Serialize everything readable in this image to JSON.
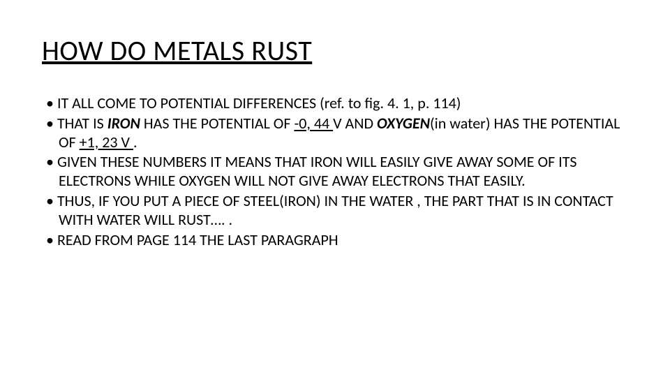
{
  "slide": {
    "title": "HOW DO METALS RUST",
    "title_fontsize": 40,
    "title_underline": true,
    "body_fontsize": 22,
    "text_color": "#000000",
    "background_color": "#ffffff",
    "bullets": [
      {
        "segments": [
          {
            "text": "IT ALL COME TO POTENTIAL DIFFERENCES (ref. to fig. 4. 1, p. 114)"
          }
        ]
      },
      {
        "segments": [
          {
            "text": "THAT IS "
          },
          {
            "text": "IRON",
            "bold": true,
            "italic": true
          },
          {
            "text": " HAS THE POTENTIAL OF "
          },
          {
            "text": "-0, 44 ",
            "underline": true
          },
          {
            "text": "V AND "
          },
          {
            "text": "OXYGEN",
            "bold": true,
            "italic": true
          },
          {
            "text": "(in water) HAS THE POTENTIAL OF "
          },
          {
            "text": "+1, 23 V ",
            "underline": true
          },
          {
            "text": "."
          }
        ]
      },
      {
        "segments": [
          {
            "text": "GIVEN THESE NUMBERS IT MEANS THAT IRON WILL EASILY GIVE AWAY SOME OF ITS ELECTRONS WHILE OXYGEN WILL NOT GIVE AWAY ELECTRONS THAT EASILY."
          }
        ]
      },
      {
        "segments": [
          {
            "text": "THUS, IF YOU PUT A PIECE OF STEEL(IRON) IN THE WATER , THE PART THAT IS IN CONTACT WITH WATER WILL RUST…. ."
          }
        ]
      },
      {
        "segments": [
          {
            "text": "READ  FROM PAGE 114 THE LAST PARAGRAPH"
          }
        ]
      }
    ]
  }
}
